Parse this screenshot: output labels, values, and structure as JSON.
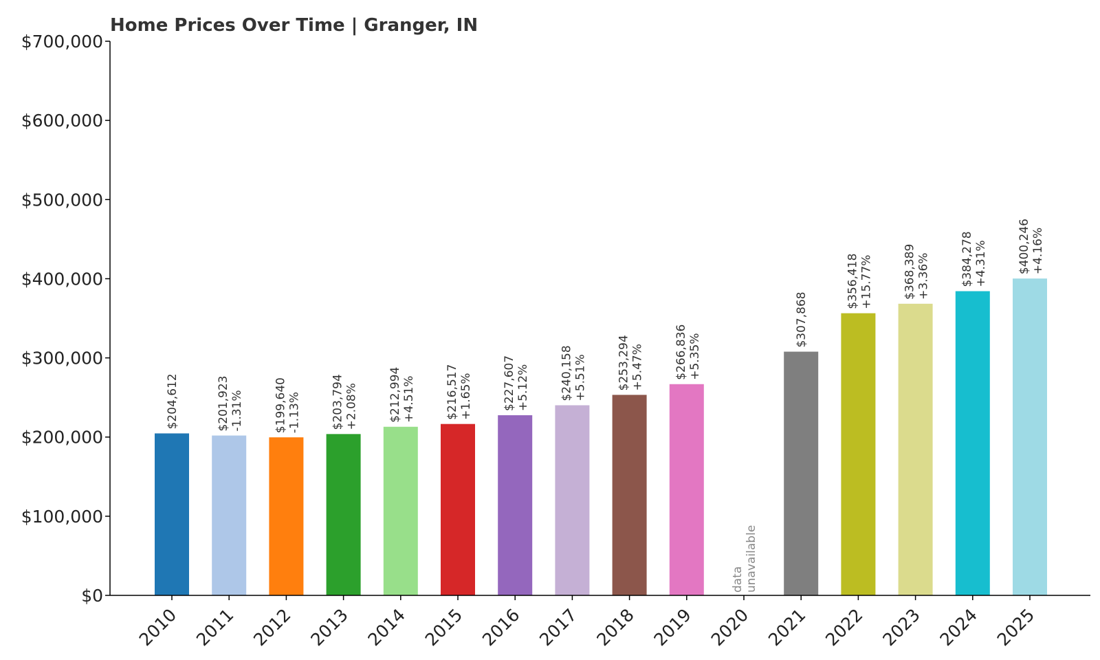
{
  "chart_data": {
    "type": "bar",
    "title": "Home Prices Over Time | Granger, IN",
    "xlabel": "",
    "ylabel": "",
    "ylim": [
      0,
      700000
    ],
    "yticks": [
      0,
      100000,
      200000,
      300000,
      400000,
      500000,
      600000,
      700000
    ],
    "ytick_labels": [
      "$0",
      "$100,000",
      "$200,000",
      "$300,000",
      "$400,000",
      "$500,000",
      "$600,000",
      "$700,000"
    ],
    "grid": false,
    "categories": [
      "2010",
      "2011",
      "2012",
      "2013",
      "2014",
      "2015",
      "2016",
      "2017",
      "2018",
      "2019",
      "2020",
      "2021",
      "2022",
      "2023",
      "2024",
      "2025"
    ],
    "values": [
      204612,
      201923,
      199640,
      203794,
      212994,
      216517,
      227607,
      240158,
      253294,
      266836,
      null,
      307868,
      356418,
      368389,
      384278,
      400246
    ],
    "value_labels": [
      "$204,612",
      "$201,923",
      "$199,640",
      "$203,794",
      "$212,994",
      "$216,517",
      "$227,607",
      "$240,158",
      "$253,294",
      "$266,836",
      "",
      "$307,868",
      "$356,418",
      "$368,389",
      "$384,278",
      "$400,246"
    ],
    "change_labels": [
      "",
      "-1.31%",
      "-1.13%",
      "+2.08%",
      "+4.51%",
      "+1.65%",
      "+5.12%",
      "+5.51%",
      "+5.47%",
      "+5.35%",
      "",
      "",
      "+15.77%",
      "+3.36%",
      "+4.31%",
      "+4.16%"
    ],
    "missing_label": [
      "data",
      "unavailable"
    ],
    "colors": [
      "#1f77b4",
      "#aec7e8",
      "#ff7f0e",
      "#2ca02c",
      "#98df8a",
      "#d62728",
      "#9467bd",
      "#c5b0d5",
      "#8c564b",
      "#e377c2",
      "#7f7f7f",
      "#7f7f7f",
      "#bcbd22",
      "#dbdb8d",
      "#17becf",
      "#9edae5"
    ]
  }
}
